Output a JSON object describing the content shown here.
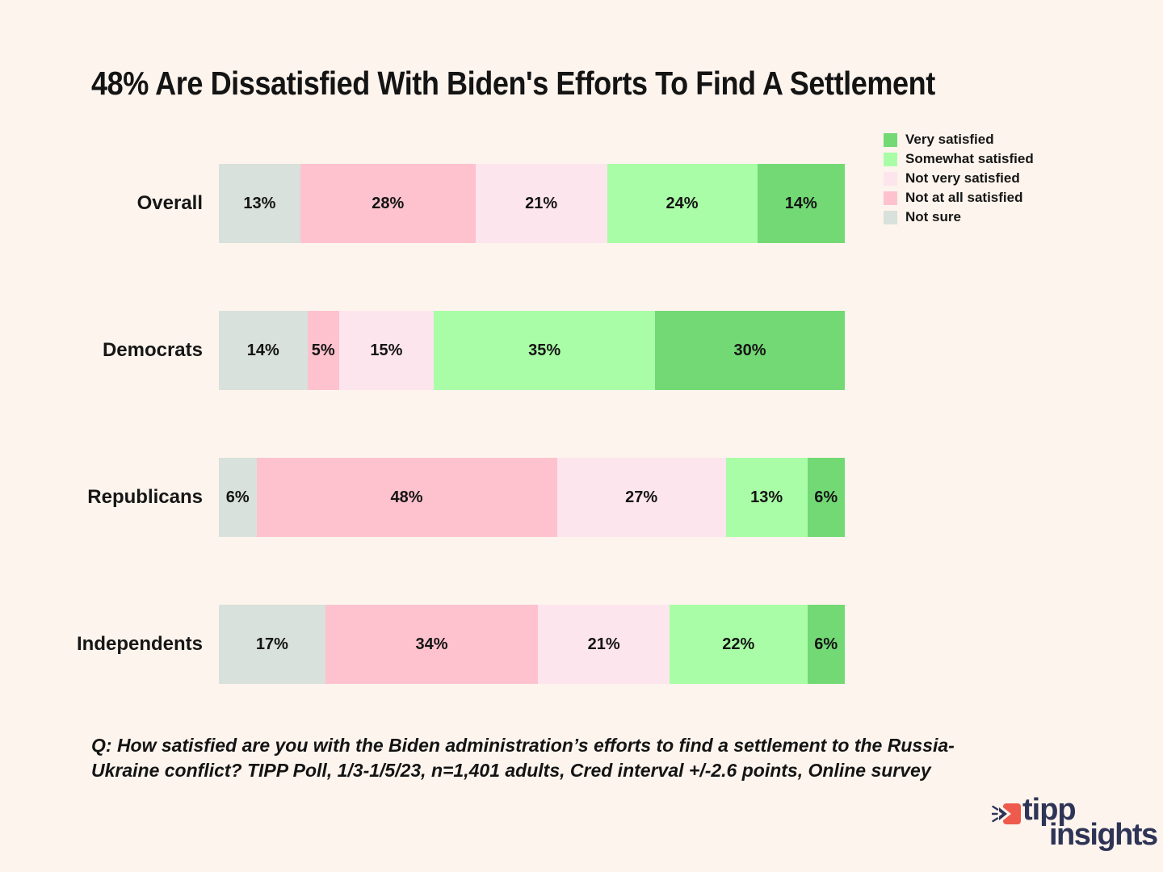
{
  "page": {
    "background": "#fdf4ed"
  },
  "chart_data": {
    "type": "bar",
    "variant": "horizontal-stacked",
    "title": "48% Are Dissatisfied With Biden's Efforts To Find A Settlement",
    "categories": [
      "Overall",
      "Democrats",
      "Republicans",
      "Independents"
    ],
    "series": [
      {
        "name": "Very satisfied",
        "color": "#72d974",
        "values": [
          14,
          30,
          6,
          6
        ]
      },
      {
        "name": "Somewhat satisfied",
        "color": "#a9fda6",
        "values": [
          24,
          35,
          13,
          22
        ]
      },
      {
        "name": "Not very satisfied",
        "color": "#fde5ee",
        "values": [
          21,
          15,
          27,
          21
        ]
      },
      {
        "name": "Not at all satisfied",
        "color": "#fec2ce",
        "values": [
          28,
          5,
          48,
          34
        ]
      },
      {
        "name": "Not sure",
        "color": "#d8e1db",
        "values": [
          13,
          14,
          6,
          17
        ]
      }
    ],
    "bar_segment_order": [
      "Not sure",
      "Not at all satisfied",
      "Not very satisfied",
      "Somewhat satisfied",
      "Very satisfied"
    ],
    "value_suffix": "%",
    "xlim": [
      0,
      100
    ],
    "grid": false,
    "legend_position": "top-right"
  },
  "footer": {
    "lines": [
      "Q:  How satisfied are you with the Biden administration’s efforts to find a settlement to the Russia-",
      "Ukraine conflict? TIPP Poll, 1/3-1/5/23, n=1,401 adults, Cred interval +/-2.6 points, Online survey"
    ]
  },
  "logo": {
    "line1": "tipp",
    "line2": "insights",
    "icon": "tipp-insights-arrow-icon",
    "accent_color": "#ee5a4c",
    "text_color": "#2e3456"
  }
}
